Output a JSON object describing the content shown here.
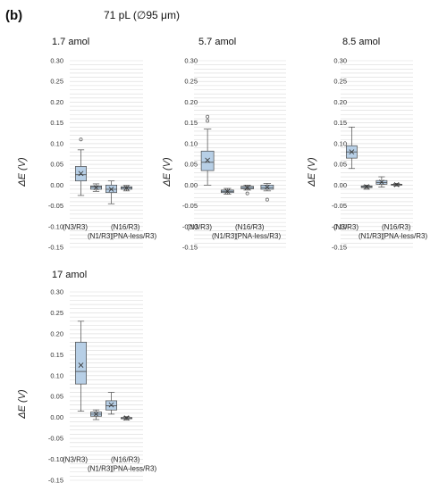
{
  "figure": {
    "panel_label": "(b)",
    "title": "71 pL (∅95 μm)"
  },
  "colors": {
    "box_fill": "#b7cfe6",
    "box_stroke": "#4a4a4a",
    "grid": "#d9d9d9"
  },
  "chart_data": [
    {
      "type": "box",
      "title": "1.7 amol",
      "ylabel": "ΔE (V)",
      "ylim": [
        -0.15,
        0.3
      ],
      "yticks": [
        "0.30",
        "0.25",
        "0.20",
        "0.15",
        "0.10",
        "0.05",
        "0.00",
        "-0.05",
        "-0.10",
        "-0.15"
      ],
      "categories": [
        "(N3/R3)",
        "(N1/R3)",
        "(N16/R3)",
        "(PNA-less/R3)"
      ],
      "boxes": [
        {
          "min": -0.025,
          "q1": 0.01,
          "median": 0.025,
          "q3": 0.045,
          "max": 0.085,
          "mean": 0.028,
          "outliers": [
            0.11
          ]
        },
        {
          "min": -0.015,
          "q1": -0.01,
          "median": -0.005,
          "q3": -0.002,
          "max": 0.003,
          "mean": -0.006,
          "outliers": []
        },
        {
          "min": -0.045,
          "q1": -0.018,
          "median": -0.01,
          "q3": 0.0,
          "max": 0.01,
          "mean": -0.01,
          "outliers": []
        },
        {
          "min": -0.014,
          "q1": -0.01,
          "median": -0.007,
          "q3": -0.004,
          "max": -0.001,
          "mean": -0.007,
          "outliers": []
        }
      ]
    },
    {
      "type": "box",
      "title": "5.7 amol",
      "ylabel": "ΔE (V)",
      "ylim": [
        -0.15,
        0.3
      ],
      "yticks": [
        "0.30",
        "0.25",
        "0.20",
        "0.15",
        "0.10",
        "0.05",
        "0.00",
        "-0.05",
        "-0.10",
        "-0.15"
      ],
      "categories": [
        "(N3/R3)",
        "(N1/R3)",
        "(N16/R3)",
        "(PNA-less/R3)"
      ],
      "boxes": [
        {
          "min": 0.0,
          "q1": 0.035,
          "median": 0.055,
          "q3": 0.082,
          "max": 0.135,
          "mean": 0.06,
          "outliers": [
            0.155,
            0.165
          ]
        },
        {
          "min": -0.022,
          "q1": -0.018,
          "median": -0.015,
          "q3": -0.012,
          "max": -0.008,
          "mean": -0.015,
          "outliers": []
        },
        {
          "min": -0.012,
          "q1": -0.009,
          "median": -0.006,
          "q3": -0.003,
          "max": 0.0,
          "mean": -0.006,
          "outliers": [
            -0.02
          ]
        },
        {
          "min": -0.014,
          "q1": -0.01,
          "median": -0.006,
          "q3": 0.0,
          "max": 0.004,
          "mean": -0.005,
          "outliers": [
            -0.035
          ]
        }
      ]
    },
    {
      "type": "box",
      "title": "8.5 amol",
      "ylabel": "ΔE (V)",
      "ylim": [
        -0.15,
        0.3
      ],
      "yticks": [
        "0.30",
        "0.25",
        "0.20",
        "0.15",
        "0.10",
        "0.05",
        "0.00",
        "-0.05",
        "-0.10",
        "-0.15"
      ],
      "categories": [
        "(N3/R3)",
        "(N1/R3)",
        "(N16/R3)",
        "(PNA-less/R3)"
      ],
      "boxes": [
        {
          "min": 0.04,
          "q1": 0.065,
          "median": 0.08,
          "q3": 0.095,
          "max": 0.14,
          "mean": 0.08,
          "outliers": []
        },
        {
          "min": -0.01,
          "q1": -0.006,
          "median": -0.004,
          "q3": -0.002,
          "max": 0.0,
          "mean": -0.004,
          "outliers": []
        },
        {
          "min": -0.005,
          "q1": 0.002,
          "median": 0.006,
          "q3": 0.011,
          "max": 0.02,
          "mean": 0.007,
          "outliers": []
        },
        {
          "min": -0.002,
          "q1": 0.0,
          "median": 0.001,
          "q3": 0.002,
          "max": 0.004,
          "mean": 0.001,
          "outliers": []
        }
      ]
    },
    {
      "type": "box",
      "title": "17 amol",
      "ylabel": "ΔE (V)",
      "ylim": [
        -0.15,
        0.3
      ],
      "yticks": [
        "0.30",
        "0.25",
        "0.20",
        "0.15",
        "0.10",
        "0.05",
        "0.00",
        "-0.05",
        "-0.10",
        "-0.15"
      ],
      "categories": [
        "(N3/R3)",
        "(N1/R3)",
        "(N16/R3)",
        "(PNA-less/R3)"
      ],
      "boxes": [
        {
          "min": 0.015,
          "q1": 0.08,
          "median": 0.11,
          "q3": 0.18,
          "max": 0.23,
          "mean": 0.125,
          "outliers": []
        },
        {
          "min": -0.005,
          "q1": 0.003,
          "median": 0.008,
          "q3": 0.013,
          "max": 0.018,
          "mean": 0.008,
          "outliers": []
        },
        {
          "min": 0.008,
          "q1": 0.018,
          "median": 0.028,
          "q3": 0.04,
          "max": 0.06,
          "mean": 0.03,
          "outliers": []
        },
        {
          "min": -0.006,
          "q1": -0.003,
          "median": -0.001,
          "q3": 0.0,
          "max": 0.002,
          "mean": -0.001,
          "outliers": []
        }
      ]
    }
  ]
}
